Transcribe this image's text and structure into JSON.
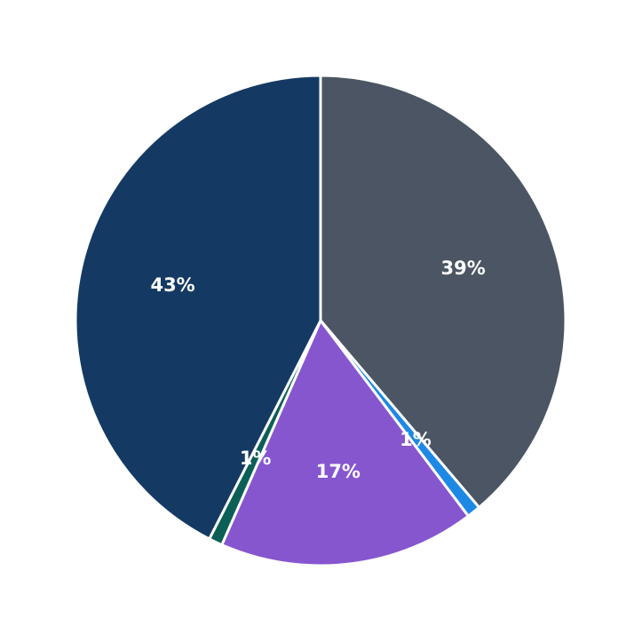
{
  "chart_data": {
    "type": "pie",
    "title": "",
    "start_angle_deg": 0,
    "direction": "clockwise",
    "slices": [
      {
        "label": "39%",
        "value": 38.8,
        "color": "#4b5563"
      },
      {
        "label": "1%",
        "value": 0.9,
        "color": "#1e88e5"
      },
      {
        "label": "17%",
        "value": 16.9,
        "color": "#8656cf"
      },
      {
        "label": "1%",
        "value": 0.9,
        "color": "#0b5f57"
      },
      {
        "label": "43%",
        "value": 42.5,
        "color": "#143a63"
      }
    ],
    "values": [
      38.8,
      0.9,
      16.9,
      0.9,
      42.5
    ],
    "legend": []
  }
}
